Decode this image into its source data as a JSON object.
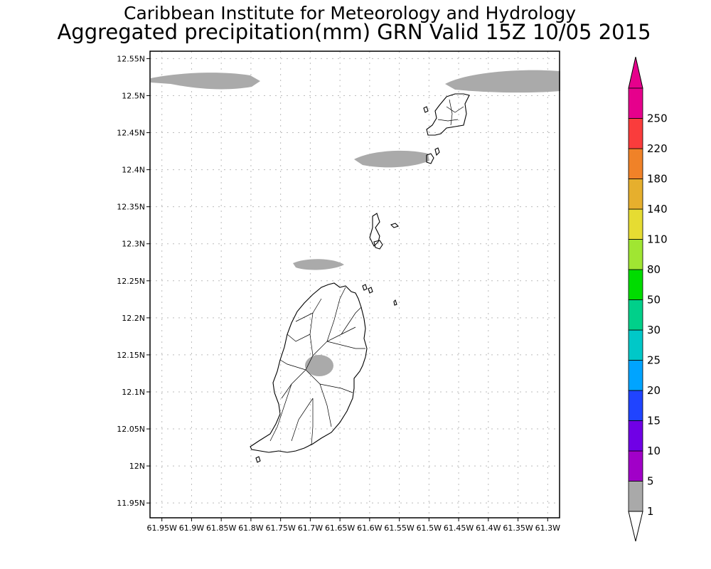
{
  "title": {
    "line1": "Caribbean Institute for Meteorology and Hydrology",
    "line2": "Aggregated precipitation(mm) GRN Valid 15Z 10/05 2015"
  },
  "map": {
    "lat_labels": [
      "12.55N",
      "12.5N",
      "12.45N",
      "12.4N",
      "12.35N",
      "12.3N",
      "12.25N",
      "12.2N",
      "12.15N",
      "12.1N",
      "12.05N",
      "12N",
      "11.95N"
    ],
    "lon_labels": [
      "61.95W",
      "61.9W",
      "61.85W",
      "61.8W",
      "61.75W",
      "61.7W",
      "61.65W",
      "61.6W",
      "61.55W",
      "61.5W",
      "61.45W",
      "61.4W",
      "61.35W",
      "61.3W"
    ],
    "lat_values": [
      12.55,
      12.5,
      12.45,
      12.4,
      12.35,
      12.3,
      12.25,
      12.2,
      12.15,
      12.1,
      12.05,
      12.0,
      11.95
    ],
    "lon_values": [
      -61.95,
      -61.9,
      -61.85,
      -61.8,
      -61.75,
      -61.7,
      -61.65,
      -61.6,
      -61.55,
      -61.5,
      -61.45,
      -61.4,
      -61.35,
      -61.3
    ],
    "lat_range": [
      11.93,
      12.56
    ],
    "lon_range": [
      -61.97,
      -61.28
    ],
    "grid": "dotted",
    "precip_areas": [
      {
        "name": "northwest band",
        "bin": "1-5"
      },
      {
        "name": "northeast band",
        "bin": "1-5"
      },
      {
        "name": "north of Carriacou channel",
        "bin": "1-5"
      },
      {
        "name": "north of Grenada",
        "bin": "1-5"
      },
      {
        "name": "central Grenada",
        "bin": "1-5"
      }
    ]
  },
  "legend": {
    "levels": [
      "1",
      "5",
      "10",
      "15",
      "20",
      "25",
      "30",
      "50",
      "80",
      "110",
      "140",
      "180",
      "220",
      "250"
    ],
    "colors": [
      "#a9a9a9",
      "#a100c8",
      "#7000e6",
      "#2044ff",
      "#00a4ff",
      "#00c8c8",
      "#00d08a",
      "#00dc00",
      "#a0e632",
      "#e6dc32",
      "#e6af2d",
      "#f08228",
      "#fa3c3c",
      "#e6008c"
    ],
    "below_color": "#ffffff",
    "above_color": "#e6008c"
  }
}
